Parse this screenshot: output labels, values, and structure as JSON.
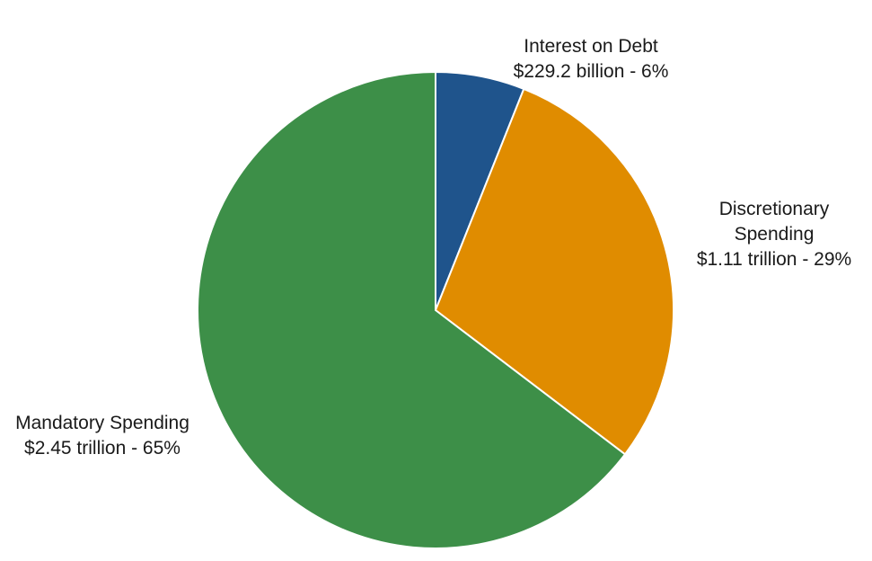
{
  "chart_data": {
    "type": "pie",
    "title": "",
    "unit": "",
    "start_angle_deg": 0,
    "direction": "clockwise",
    "slices": [
      {
        "name": "Interest on Debt",
        "amount": "$229.2 billion",
        "percent_label": "6%",
        "value": 229.2,
        "color": "#1f548c",
        "label_lines": [
          "Interest on Debt",
          "$229.2 billion - 6%"
        ]
      },
      {
        "name": "Discretionary Spending",
        "amount": "$1.11 trillion",
        "percent_label": "29%",
        "value": 1110,
        "color": "#e08c00",
        "label_lines": [
          "Discretionary",
          "Spending",
          "$1.11 trillion - 29%"
        ]
      },
      {
        "name": "Mandatory Spending",
        "amount": "$2.45 trillion",
        "percent_label": "65%",
        "value": 2450,
        "color": "#3d8f48",
        "label_lines": [
          "Mandatory Spending",
          "$2.45 trillion - 65%"
        ]
      }
    ]
  }
}
